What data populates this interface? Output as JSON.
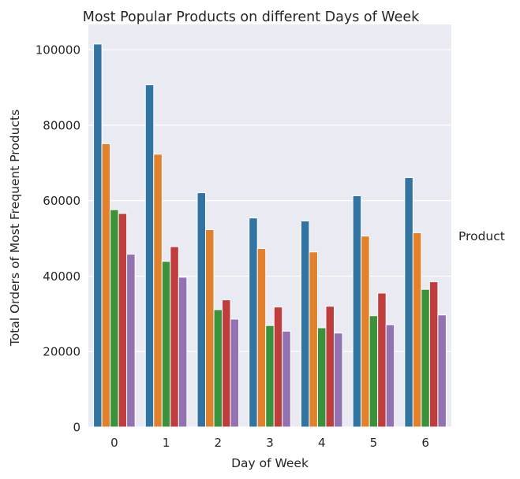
{
  "chart_data": {
    "type": "bar",
    "title": "Most Popular Products on different Days of Week",
    "xlabel": "Day of Week",
    "ylabel": "Total Orders of Most Frequent Products",
    "legend_title": "Product",
    "legend_placement": "right",
    "grid": true,
    "ylim": [
      0,
      106700
    ],
    "y_ticks": [
      0,
      20000,
      40000,
      60000,
      80000,
      100000
    ],
    "y_tick_labels": [
      "0",
      "20000",
      "40000",
      "60000",
      "80000",
      "100000"
    ],
    "categories": [
      "0",
      "1",
      "2",
      "3",
      "4",
      "5",
      "6"
    ],
    "series": [
      {
        "color": "#3274a1",
        "values": [
          101500,
          90700,
          62100,
          55400,
          54600,
          61300,
          66100
        ]
      },
      {
        "color": "#e1812c",
        "values": [
          75100,
          72300,
          52300,
          47300,
          46400,
          50600,
          51500
        ]
      },
      {
        "color": "#3a923a",
        "values": [
          57600,
          43900,
          31100,
          26900,
          26300,
          29500,
          36500
        ]
      },
      {
        "color": "#c03d3e",
        "values": [
          56600,
          47800,
          33700,
          31800,
          32000,
          35500,
          38500
        ]
      },
      {
        "color": "#9372b2",
        "values": [
          45800,
          39700,
          28600,
          25400,
          24900,
          27100,
          29700
        ]
      }
    ]
  }
}
